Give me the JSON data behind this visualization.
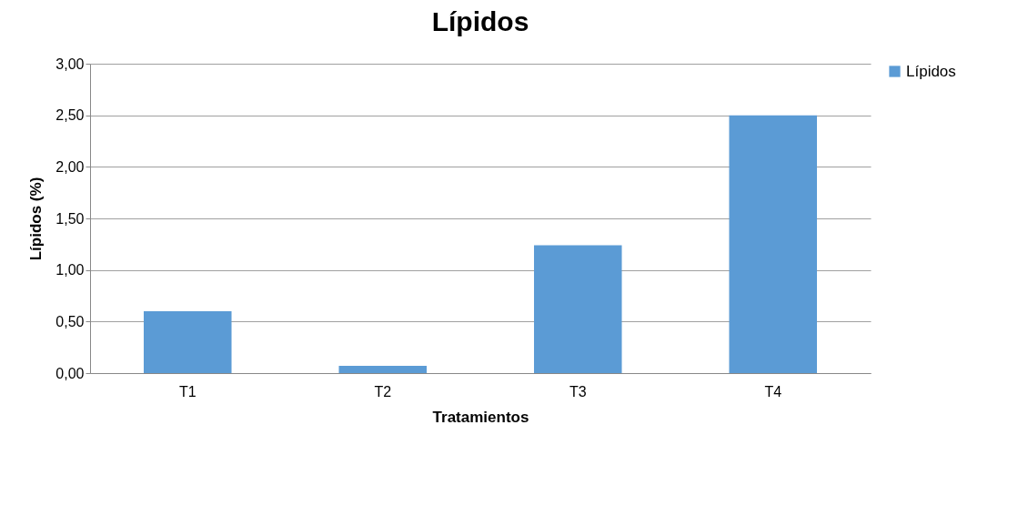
{
  "chart_data": {
    "type": "bar",
    "title": "Lípidos",
    "xlabel": "Tratamientos",
    "ylabel": "Lípidos (%)",
    "categories": [
      "T1",
      "T2",
      "T3",
      "T4"
    ],
    "series": [
      {
        "name": "Lípidos",
        "color": "#5b9bd5",
        "values": [
          0.6,
          0.07,
          1.24,
          2.5
        ]
      }
    ],
    "ylim": [
      0,
      3
    ],
    "yticks": [
      {
        "value": 0,
        "label": "0,00"
      },
      {
        "value": 0.5,
        "label": "0,50"
      },
      {
        "value": 1,
        "label": "1,00"
      },
      {
        "value": 1.5,
        "label": "1,50"
      },
      {
        "value": 2,
        "label": "2,00"
      },
      {
        "value": 2.5,
        "label": "2,50"
      },
      {
        "value": 3,
        "label": "3,00"
      }
    ],
    "grid": "y",
    "legend": "right"
  }
}
